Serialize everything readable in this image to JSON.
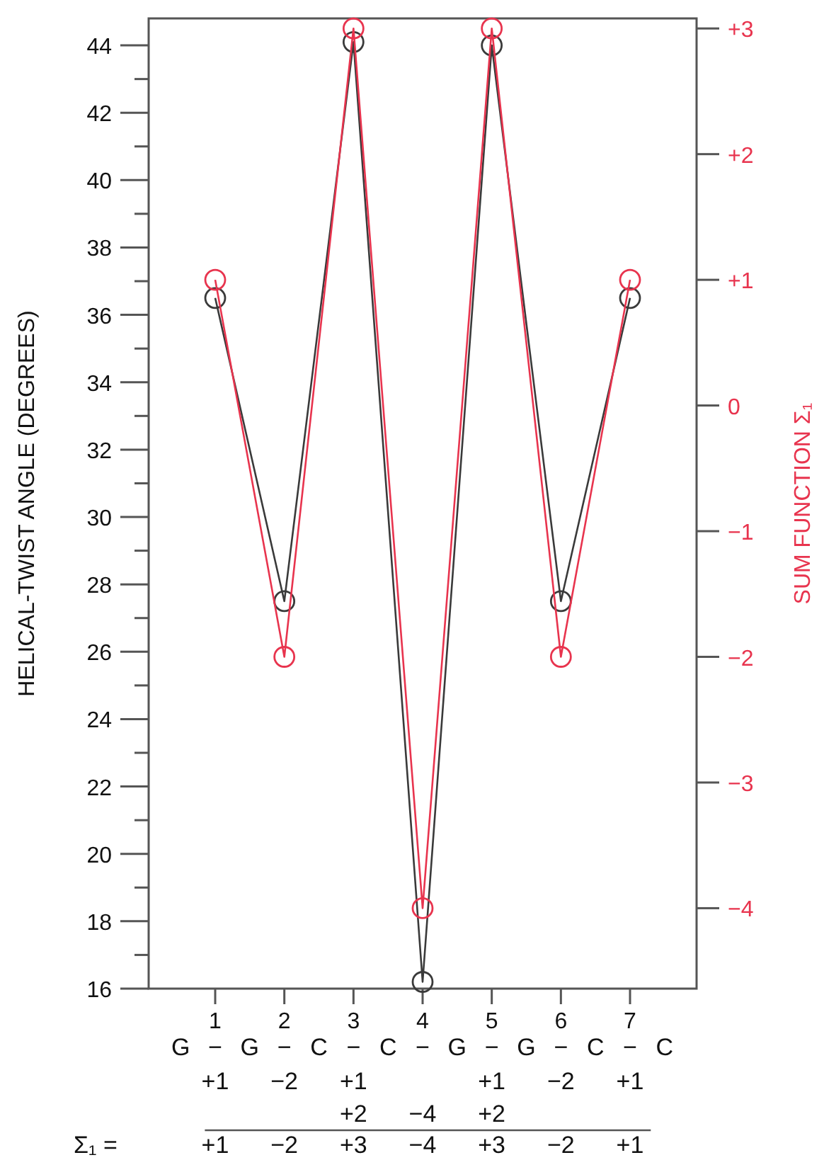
{
  "chart_data": {
    "type": "line",
    "categories": [
      "1",
      "2",
      "3",
      "4",
      "5",
      "6",
      "7"
    ],
    "ylabel": "HELICAL-TWIST ANGLE (DEGREES)",
    "y2label": "SUM FUNCTION Σ₁",
    "ylim": [
      16,
      44.8
    ],
    "yticks": [
      16,
      {
        "value": 17,
        "label": null
      },
      18,
      {
        "value": 19,
        "label": null
      },
      20,
      {
        "value": 21,
        "label": null
      },
      22,
      {
        "value": 23,
        "label": null
      },
      24,
      {
        "value": 25,
        "label": null
      },
      26,
      {
        "value": 27,
        "label": null
      },
      28,
      {
        "value": 29,
        "label": null
      },
      30,
      {
        "value": 31,
        "label": null
      },
      32,
      {
        "value": 33,
        "label": null
      },
      34,
      {
        "value": 35,
        "label": null
      },
      36,
      {
        "value": 37,
        "label": null
      },
      38,
      {
        "value": 39,
        "label": null
      },
      40,
      {
        "value": 41,
        "label": null
      },
      42,
      {
        "value": 43,
        "label": null
      },
      44
    ],
    "y2lim": [
      -4.64,
      3.08
    ],
    "y2ticks": [
      {
        "value": -4,
        "label": "−4"
      },
      {
        "value": -3,
        "label": "−3"
      },
      {
        "value": -2,
        "label": "−2"
      },
      {
        "value": -1,
        "label": "−1"
      },
      0,
      {
        "value": 1,
        "label": "+1"
      },
      {
        "value": 2,
        "label": "+2"
      },
      {
        "value": 3,
        "label": "+3"
      }
    ],
    "series": [
      {
        "color": "#3a3a3a",
        "values": [
          36.5,
          27.5,
          44.1,
          16.2,
          44.0,
          27.5,
          36.5
        ]
      },
      {
        "color": "#e8344e",
        "axis": "y2",
        "values": [
          1,
          -2,
          3,
          -4,
          3,
          -2,
          1
        ]
      }
    ],
    "marker": "circle",
    "line_style": "solid",
    "grid": false,
    "annotations": [
      "G − G − C − C − G − G − C − C",
      "+1 −2 +1 +1 −2 +1",
      "+2 −4 +2",
      "Σ₁ = +1 −2 +3 −4 +3 −2 +1"
    ]
  }
}
